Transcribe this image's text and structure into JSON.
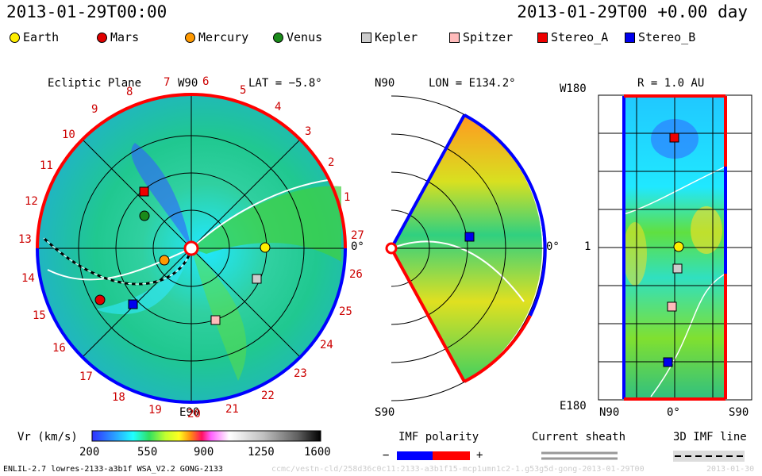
{
  "header": {
    "left_time": "2013-01-29T00:00",
    "right_time": "2013-01-29T00 +0.00 day"
  },
  "legend": [
    {
      "label": "Earth",
      "shape": "circle",
      "color": "#ffee00"
    },
    {
      "label": "Mars",
      "shape": "circle",
      "color": "#e00000"
    },
    {
      "label": "Mercury",
      "shape": "circle",
      "color": "#ff9900"
    },
    {
      "label": "Venus",
      "shape": "circle",
      "color": "#1a8a1a"
    },
    {
      "label": "Kepler",
      "shape": "square",
      "color": "#cccccc"
    },
    {
      "label": "Spitzer",
      "shape": "square",
      "color": "#ffbbbb"
    },
    {
      "label": "Stereo_A",
      "shape": "square",
      "color": "#ee0000"
    },
    {
      "label": "Stereo_B",
      "shape": "square",
      "color": "#0000ee"
    }
  ],
  "ecliptic": {
    "title": "Ecliptic Plane",
    "top_label": "W90",
    "bottom_label": "E90",
    "lat_label": "LAT = −5.8°",
    "right_label": "0°",
    "numbers": [
      "1",
      "2",
      "3",
      "4",
      "5",
      "6",
      "7",
      "8",
      "9",
      "10",
      "11",
      "12",
      "13",
      "14",
      "15",
      "16",
      "17",
      "18",
      "19",
      "20",
      "21",
      "22",
      "23",
      "24",
      "25",
      "26",
      "27"
    ]
  },
  "meridional": {
    "top_left": "N90",
    "lon_label": "LON = E134.2°",
    "right_label": "0°",
    "bottom_left": "S90"
  },
  "rmap": {
    "title": "R = 1.0 AU",
    "top_left": "W180",
    "mid_left": "1",
    "bottom_left": "E180",
    "x_labels": [
      "N90",
      "0°",
      "S90"
    ]
  },
  "colorbar": {
    "label": "Vr (km/s)",
    "ticks": [
      "200",
      "550",
      "900",
      "1250",
      "1600"
    ],
    "colors": [
      "#3030ff",
      "#2aa0ff",
      "#20ffff",
      "#30e060",
      "#c0ff30",
      "#ffff20",
      "#ff9010",
      "#ff1060",
      "#ff60ff",
      "#ffffff",
      "#c0c0c0",
      "#606060",
      "#000000"
    ]
  },
  "imf_polarity": {
    "label": "IMF polarity",
    "minus": "−",
    "plus": "+",
    "neg_color": "#0000ff",
    "pos_color": "#ff0000"
  },
  "current_sheath": {
    "label": "Current sheath"
  },
  "imf_line": {
    "label": "3D IMF line"
  },
  "footer": {
    "left": "ENLIL-2.7 lowres-2133-a3b1f WSA_V2.2 GONG-2133",
    "watermark": "ccmc/vestn-cld/258d36c0c11:2133-a3b1f15-mcp1umn1c2-1.g53g5d-gong-2013-01-29T00",
    "right": "2013-01-30"
  }
}
